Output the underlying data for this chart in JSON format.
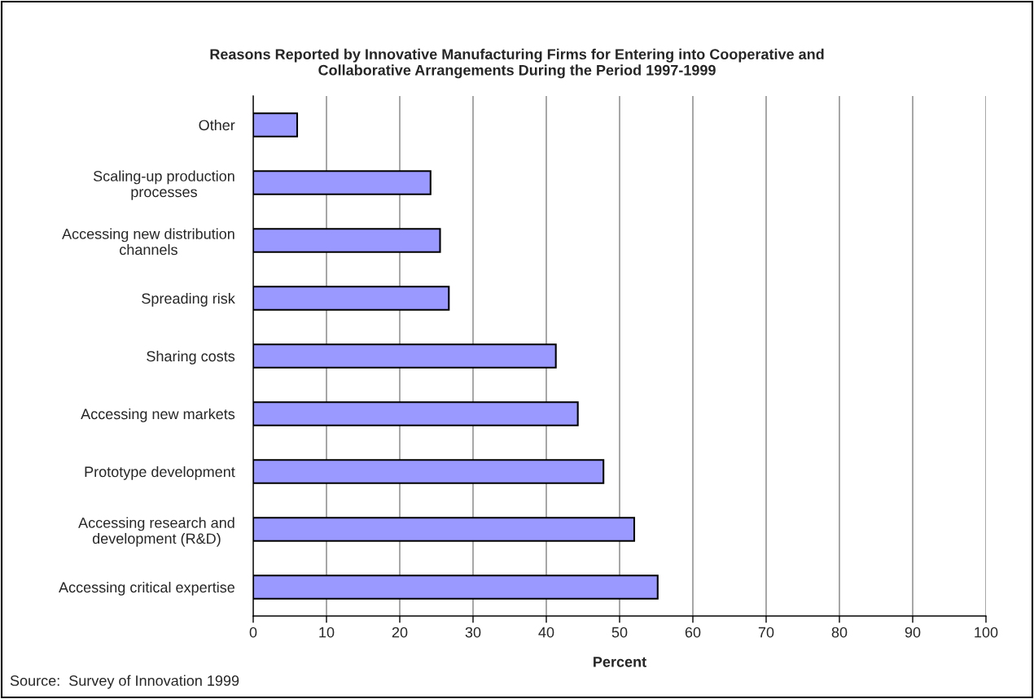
{
  "chart_data": {
    "type": "bar",
    "orientation": "horizontal",
    "title": "Reasons Reported by Innovative Manufacturing Firms for Entering into Cooperative and\nCollaborative Arrangements During the Period 1997-1999",
    "xlabel": "Percent",
    "categories": [
      "Other",
      "Scaling-up production\nprocesses",
      "Accessing new distribution\nchannels",
      "Spreading risk",
      "Sharing costs",
      "Accessing new markets",
      "Prototype development",
      "Accessing research and\ndevelopment (R&D)",
      "Accessing critical expertise"
    ],
    "values": [
      6.0,
      24.2,
      25.5,
      26.7,
      41.3,
      44.3,
      47.8,
      52.0,
      55.2
    ],
    "color": "#9999ff",
    "xlim": [
      0,
      100
    ],
    "xticks": [
      0,
      10,
      20,
      30,
      40,
      50,
      60,
      70,
      80,
      90,
      100
    ],
    "grid": "x",
    "legend": false,
    "annotations": [
      "Source:  Survey of Innovation 1999"
    ]
  }
}
